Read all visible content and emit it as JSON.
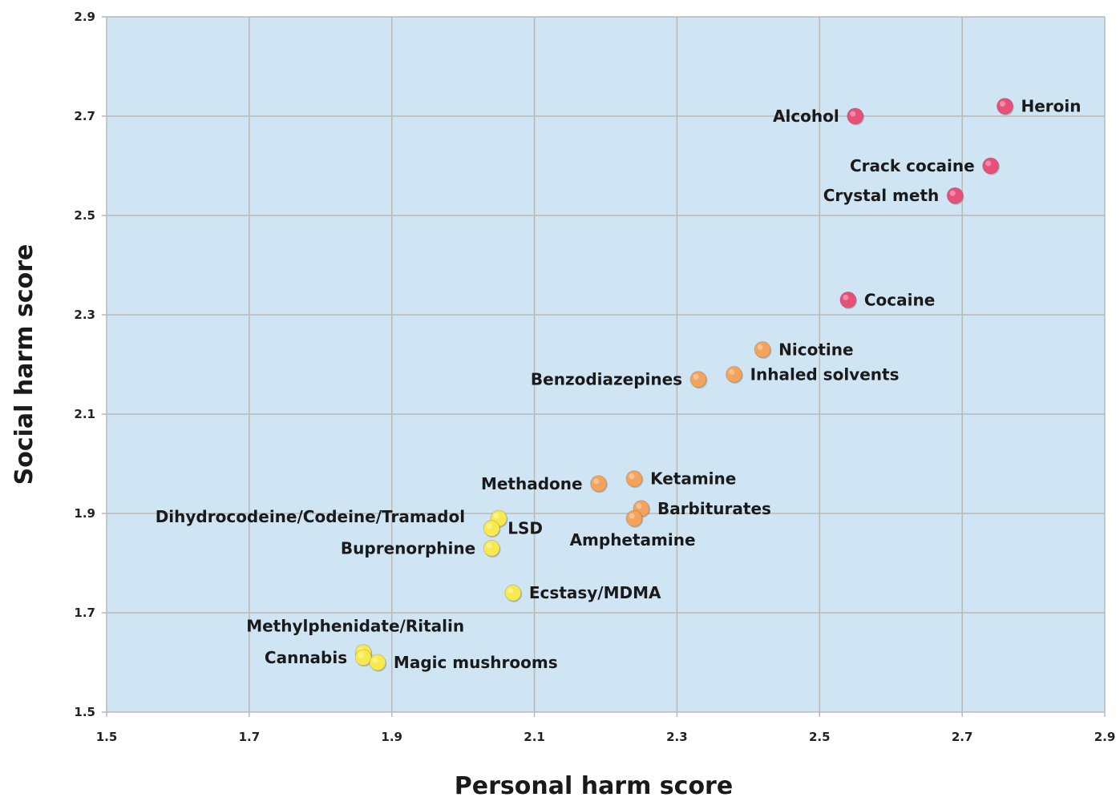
{
  "chart_data": {
    "type": "scatter",
    "xlabel": "Personal harm score",
    "ylabel": "Social harm score",
    "xlim": [
      1.5,
      2.9
    ],
    "ylim": [
      1.5,
      2.9
    ],
    "xticks": [
      "1.5",
      "1.7",
      "1.9",
      "2.1",
      "2.3",
      "2.5",
      "2.7",
      "2.9"
    ],
    "yticks": [
      "1.5",
      "1.7",
      "1.9",
      "2.1",
      "2.3",
      "2.5",
      "2.7",
      "2.9"
    ],
    "grid": true,
    "background_color": "#d0e5f3",
    "grid_color": "#b8b8b8",
    "points": [
      {
        "label": "Heroin",
        "x": 2.76,
        "y": 2.72,
        "color": "#e8507a",
        "label_pos": "right"
      },
      {
        "label": "Alcohol",
        "x": 2.55,
        "y": 2.7,
        "color": "#e8507a",
        "label_pos": "left"
      },
      {
        "label": "Crack cocaine",
        "x": 2.74,
        "y": 2.6,
        "color": "#e8507a",
        "label_pos": "left"
      },
      {
        "label": "Crystal meth",
        "x": 2.69,
        "y": 2.54,
        "color": "#e8507a",
        "label_pos": "left"
      },
      {
        "label": "Cocaine",
        "x": 2.54,
        "y": 2.33,
        "color": "#e8507a",
        "label_pos": "right"
      },
      {
        "label": "Nicotine",
        "x": 2.42,
        "y": 2.23,
        "color": "#f3a35b",
        "label_pos": "right"
      },
      {
        "label": "Inhaled solvents",
        "x": 2.38,
        "y": 2.18,
        "color": "#f3a35b",
        "label_pos": "right"
      },
      {
        "label": "Benzodiazepines",
        "x": 2.33,
        "y": 2.17,
        "color": "#f3a35b",
        "label_pos": "left"
      },
      {
        "label": "Ketamine",
        "x": 2.24,
        "y": 1.97,
        "color": "#f3a35b",
        "label_pos": "right"
      },
      {
        "label": "Methadone",
        "x": 2.19,
        "y": 1.96,
        "color": "#f3a35b",
        "label_pos": "left"
      },
      {
        "label": "Barbiturates",
        "x": 2.25,
        "y": 1.91,
        "color": "#f3a35b",
        "label_pos": "right"
      },
      {
        "label": "Amphetamine",
        "x": 2.24,
        "y": 1.89,
        "color": "#f3a35b",
        "label_pos": "below-center"
      },
      {
        "label": "Dihydrocodeine/Codeine/Tramadol",
        "x": 2.05,
        "y": 1.89,
        "color": "#f8e94f",
        "label_pos": "left-far"
      },
      {
        "label": "LSD",
        "x": 2.04,
        "y": 1.87,
        "color": "#f8e94f",
        "label_pos": "right"
      },
      {
        "label": "Buprenorphine",
        "x": 2.04,
        "y": 1.83,
        "color": "#f8e94f",
        "label_pos": "left"
      },
      {
        "label": "Ecstasy/MDMA",
        "x": 2.07,
        "y": 1.74,
        "color": "#f8e94f",
        "label_pos": "right"
      },
      {
        "label": "Methylphenidate/Ritalin",
        "x": 1.86,
        "y": 1.62,
        "color": "#f8e94f",
        "label_pos": "above-center"
      },
      {
        "label": "Cannabis",
        "x": 1.86,
        "y": 1.61,
        "color": "#f8e94f",
        "label_pos": "left"
      },
      {
        "label": "Magic mushrooms",
        "x": 1.88,
        "y": 1.6,
        "color": "#f8e94f",
        "label_pos": "right"
      }
    ]
  }
}
